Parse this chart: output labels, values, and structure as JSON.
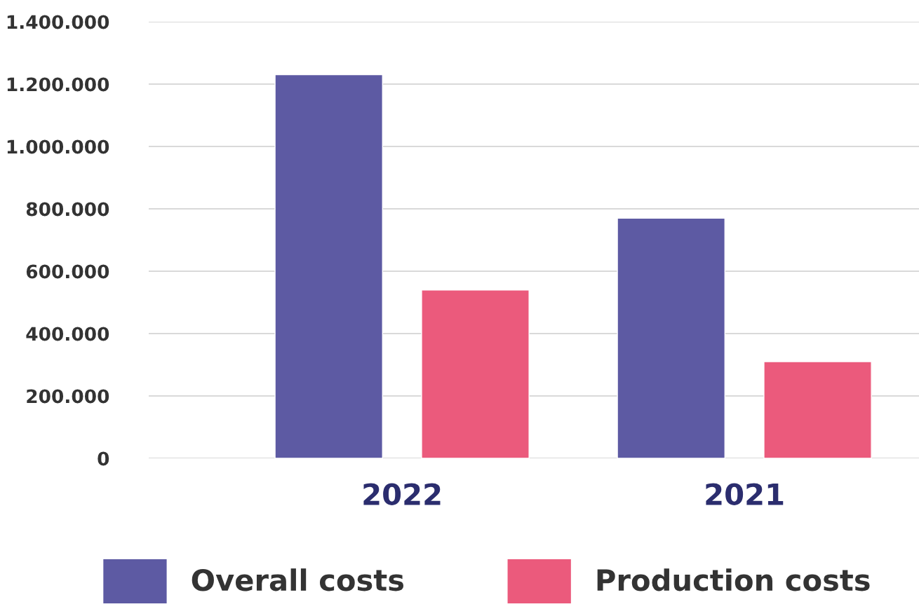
{
  "chart_data": {
    "type": "bar",
    "categories": [
      "2022",
      "2021"
    ],
    "series": [
      {
        "name": "Overall costs",
        "color": "#5d5aa3",
        "values": [
          1230000,
          770000
        ]
      },
      {
        "name": "Production costs",
        "color": "#eb5a7c",
        "values": [
          540000,
          310000
        ]
      }
    ],
    "ylim": [
      0,
      1400000
    ],
    "yticks": [
      {
        "value": 0,
        "label": "0"
      },
      {
        "value": 200000,
        "label": "200.000"
      },
      {
        "value": 400000,
        "label": "400.000"
      },
      {
        "value": 600000,
        "label": "600.000"
      },
      {
        "value": 800000,
        "label": "800.000"
      },
      {
        "value": 1000000,
        "label": "1.000.000"
      },
      {
        "value": 1200000,
        "label": "1.200.000"
      },
      {
        "value": 1400000,
        "label": "1.400.000"
      }
    ],
    "grid": "y",
    "legend": "bottom"
  }
}
